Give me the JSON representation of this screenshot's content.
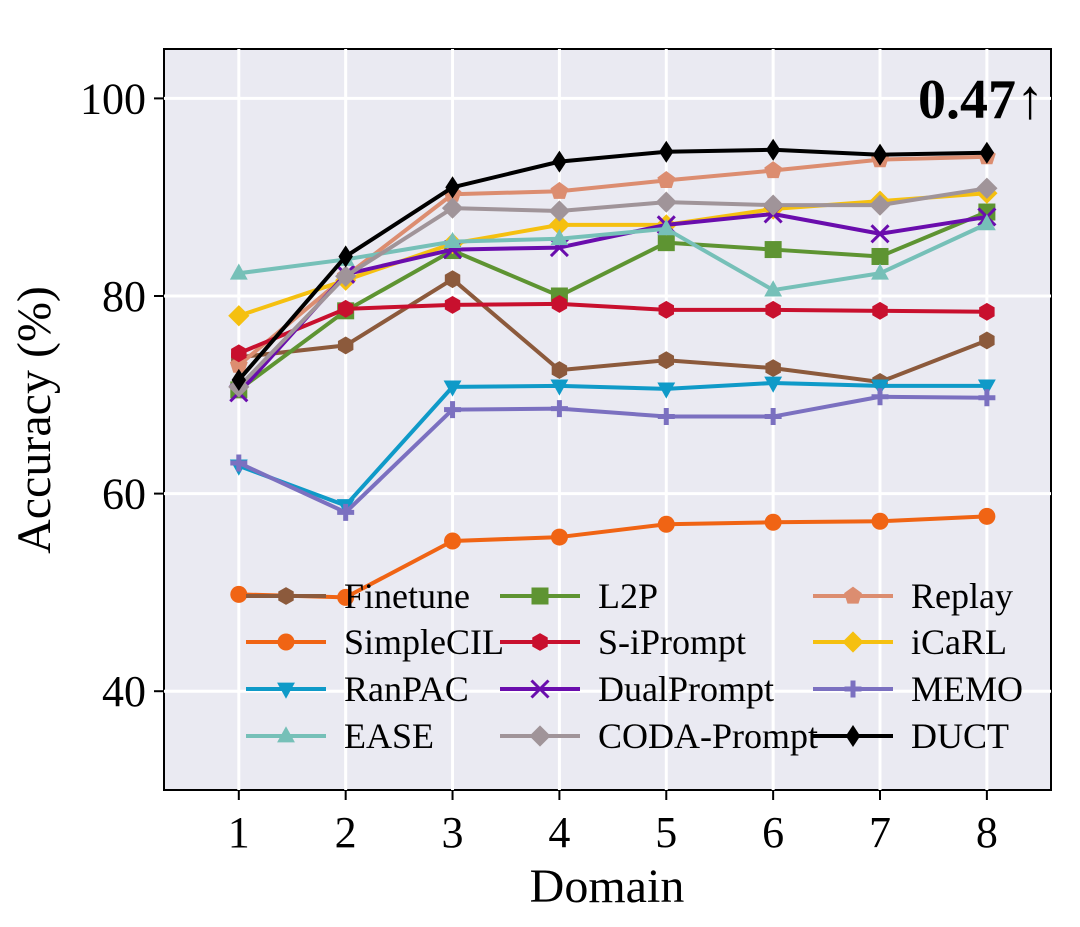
{
  "chart_data": {
    "type": "line",
    "title": "",
    "xlabel": "Domain",
    "ylabel": "Accuracy (%)",
    "x": [
      1,
      2,
      3,
      4,
      5,
      6,
      7,
      8
    ],
    "xlim": [
      0.3,
      8.6
    ],
    "ylim": [
      30,
      105
    ],
    "yticks": [
      40,
      60,
      80,
      100
    ],
    "grid": true,
    "legend_position": "lower-center",
    "annotation": "0.47↑",
    "series": [
      {
        "name": "Finetune",
        "color": "#8c5a3c",
        "marker": "hexagon",
        "values": [
          73.8,
          75.0,
          81.7,
          72.5,
          73.5,
          72.7,
          71.3,
          75.5
        ]
      },
      {
        "name": "L2P",
        "color": "#5e9432",
        "marker": "square",
        "values": [
          70.5,
          78.5,
          84.6,
          80.0,
          85.4,
          84.7,
          84.0,
          88.5
        ]
      },
      {
        "name": "Replay",
        "color": "#dc8d70",
        "marker": "pentagon",
        "values": [
          73.0,
          82.0,
          90.3,
          90.6,
          91.7,
          92.7,
          93.8,
          94.1
        ]
      },
      {
        "name": "SimpleCIL",
        "color": "#f06414",
        "marker": "circle",
        "values": [
          49.8,
          49.5,
          55.2,
          55.6,
          56.9,
          57.1,
          57.2,
          57.7
        ]
      },
      {
        "name": "S-iPrompt",
        "color": "#c8102e",
        "marker": "hexagon",
        "values": [
          74.2,
          78.7,
          79.1,
          79.2,
          78.6,
          78.6,
          78.5,
          78.4
        ]
      },
      {
        "name": "iCaRL",
        "color": "#f5c010",
        "marker": "diamond",
        "values": [
          78.0,
          81.6,
          85.3,
          87.2,
          87.2,
          88.8,
          89.6,
          90.4
        ]
      },
      {
        "name": "RanPAC",
        "color": "#0f9ac8",
        "marker": "triangle-down",
        "values": [
          62.8,
          58.8,
          70.8,
          70.9,
          70.6,
          71.2,
          70.9,
          70.9
        ]
      },
      {
        "name": "DualPrompt",
        "color": "#6a0dad",
        "marker": "x",
        "values": [
          70.2,
          82.2,
          84.7,
          84.9,
          87.2,
          88.3,
          86.3,
          88.0
        ]
      },
      {
        "name": "MEMO",
        "color": "#7b70c0",
        "marker": "plus",
        "values": [
          63.1,
          58.1,
          68.5,
          68.6,
          67.8,
          67.8,
          69.8,
          69.7
        ]
      },
      {
        "name": "EASE",
        "color": "#76c0b8",
        "marker": "triangle-up",
        "values": [
          82.3,
          83.7,
          85.5,
          85.8,
          86.8,
          80.6,
          82.3,
          87.3
        ]
      },
      {
        "name": "CODA-Prompt",
        "color": "#a09499",
        "marker": "diamond",
        "values": [
          70.8,
          82.0,
          88.9,
          88.6,
          89.5,
          89.2,
          89.2,
          90.9
        ]
      },
      {
        "name": "DUCT",
        "color": "#000000",
        "marker": "thin-diamond",
        "values": [
          71.5,
          84.0,
          91.0,
          93.6,
          94.6,
          94.8,
          94.3,
          94.5
        ]
      }
    ]
  }
}
